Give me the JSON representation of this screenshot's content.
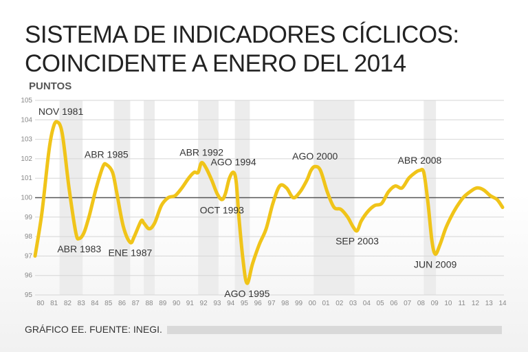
{
  "title_line1": "SISTEMA DE INDICADORES CÍCLICOS:",
  "title_line2": "COINCIDENTE A ENERO DEL 2014",
  "source": "GRÁFICO EE. FUENTE: INEGI.",
  "chart_data": {
    "type": "line",
    "ylabel": "PUNTOS",
    "ylim": [
      95,
      105
    ],
    "yticks": [
      "95",
      "96",
      "97",
      "98",
      "99",
      "100",
      "101",
      "102",
      "103",
      "104",
      "105"
    ],
    "xlim": [
      1980,
      2014.5
    ],
    "xticks": [
      "80",
      "81",
      "82",
      "83",
      "84",
      "85",
      "86",
      "87",
      "88",
      "89",
      "90",
      "91",
      "92",
      "93",
      "94",
      "95",
      "96",
      "97",
      "98",
      "99",
      "00",
      "01",
      "02",
      "03",
      "04",
      "05",
      "06",
      "07",
      "08",
      "09",
      "10",
      "11",
      "12",
      "13",
      "14"
    ],
    "reference_line": 100,
    "line_color": "#f0c419",
    "recession_bands": [
      [
        1981.8,
        1983.5
      ],
      [
        1985.8,
        1987.0
      ],
      [
        1988.0,
        1988.8
      ],
      [
        1992.0,
        1993.5
      ],
      [
        1994.7,
        1995.8
      ],
      [
        2000.5,
        2003.5
      ],
      [
        2008.6,
        2009.5
      ]
    ],
    "series": [
      {
        "x": [
          1980.0,
          1980.5,
          1981.0,
          1981.3,
          1981.6,
          1982.0,
          1982.5,
          1983.0,
          1983.25,
          1983.6,
          1984.0,
          1984.5,
          1985.0,
          1985.25,
          1985.7,
          1986.0,
          1986.5,
          1987.0,
          1987.3,
          1987.8,
          1988.0,
          1988.4,
          1988.8,
          1989.3,
          1989.8,
          1990.3,
          1990.8,
          1991.3,
          1991.7,
          1992.0,
          1992.25,
          1992.6,
          1993.0,
          1993.4,
          1993.75,
          1994.0,
          1994.3,
          1994.6,
          1994.8,
          1995.0,
          1995.3,
          1995.6,
          1996.0,
          1996.5,
          1997.0,
          1997.5,
          1998.0,
          1998.5,
          1999.0,
          1999.5,
          2000.0,
          2000.3,
          2000.6,
          2001.0,
          2001.5,
          2002.0,
          2002.5,
          2003.0,
          2003.4,
          2003.7,
          2004.0,
          2004.5,
          2005.0,
          2005.5,
          2006.0,
          2006.5,
          2007.0,
          2007.5,
          2008.0,
          2008.3,
          2008.6,
          2008.9,
          2009.2,
          2009.45,
          2009.8,
          2010.2,
          2010.6,
          2011.0,
          2011.5,
          2012.0,
          2012.5,
          2013.0,
          2013.5,
          2014.0,
          2014.4
        ],
        "y": [
          97.0,
          99.2,
          102.3,
          103.5,
          103.9,
          103.3,
          100.5,
          98.2,
          97.9,
          98.2,
          99.1,
          100.5,
          101.6,
          101.7,
          101.3,
          100.3,
          98.5,
          97.7,
          98.0,
          98.8,
          98.7,
          98.4,
          98.7,
          99.6,
          100.0,
          100.1,
          100.5,
          101.0,
          101.3,
          101.3,
          101.8,
          101.5,
          100.9,
          100.2,
          99.9,
          100.2,
          101.0,
          101.3,
          100.8,
          99.0,
          96.8,
          95.6,
          96.6,
          97.6,
          98.4,
          99.7,
          100.6,
          100.5,
          100.0,
          100.3,
          100.9,
          101.4,
          101.6,
          101.4,
          100.3,
          99.5,
          99.4,
          99.0,
          98.5,
          98.3,
          98.8,
          99.3,
          99.6,
          99.7,
          100.3,
          100.6,
          100.5,
          101.0,
          101.3,
          101.4,
          101.3,
          99.8,
          97.8,
          97.1,
          97.6,
          98.4,
          99.0,
          99.5,
          100.0,
          100.3,
          100.5,
          100.4,
          100.1,
          99.9,
          99.5
        ]
      }
    ],
    "annotations": [
      {
        "text": "NOV 1981",
        "x": 1981.9,
        "y": 103.9,
        "pos": "above"
      },
      {
        "text": "ABR 1983",
        "x": 1983.25,
        "y": 97.9,
        "pos": "below"
      },
      {
        "text": "ABR 1985",
        "x": 1985.25,
        "y": 101.7,
        "pos": "above"
      },
      {
        "text": "ENE 1987",
        "x": 1987.0,
        "y": 97.7,
        "pos": "below"
      },
      {
        "text": "ABR 1992",
        "x": 1992.25,
        "y": 101.8,
        "pos": "above"
      },
      {
        "text": "OCT 1993",
        "x": 1993.75,
        "y": 99.9,
        "pos": "below"
      },
      {
        "text": "AGO 1994",
        "x": 1994.6,
        "y": 101.3,
        "pos": "above"
      },
      {
        "text": "AGO 1995",
        "x": 1995.6,
        "y": 95.6,
        "pos": "below"
      },
      {
        "text": "AGO 2000",
        "x": 2000.6,
        "y": 101.6,
        "pos": "above"
      },
      {
        "text": "SEP 2003",
        "x": 2003.7,
        "y": 98.3,
        "pos": "below"
      },
      {
        "text": "ABR 2008",
        "x": 2008.3,
        "y": 101.4,
        "pos": "above"
      },
      {
        "text": "JUN 2009",
        "x": 2009.45,
        "y": 97.1,
        "pos": "below"
      }
    ]
  }
}
